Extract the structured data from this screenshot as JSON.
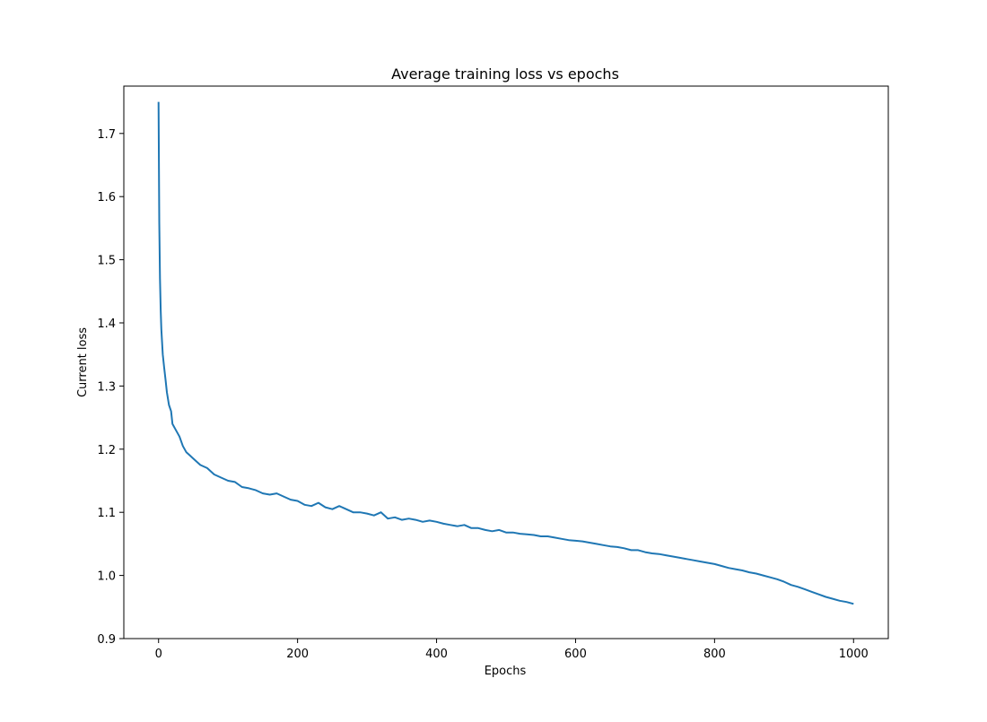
{
  "chart_data": {
    "type": "line",
    "title": "Average training loss vs epochs",
    "xlabel": "Epochs",
    "ylabel": "Current loss",
    "xlim": [
      -50,
      1050
    ],
    "ylim": [
      0.9,
      1.775
    ],
    "xticks": [
      0,
      200,
      400,
      600,
      800,
      1000
    ],
    "yticks": [
      0.9,
      1.0,
      1.1,
      1.2,
      1.3,
      1.4,
      1.5,
      1.6,
      1.7
    ],
    "grid": false,
    "legend": "none",
    "line_color": "#1f77b4",
    "series": [
      {
        "x": [
          0,
          1,
          2,
          3,
          4,
          5,
          6,
          8,
          10,
          12,
          15,
          18,
          20,
          25,
          30,
          35,
          40,
          45,
          50,
          60,
          70,
          80,
          90,
          100,
          110,
          120,
          130,
          140,
          150,
          160,
          170,
          180,
          190,
          200,
          210,
          220,
          230,
          240,
          250,
          260,
          270,
          280,
          290,
          300,
          310,
          320,
          330,
          340,
          350,
          360,
          370,
          380,
          390,
          400,
          410,
          420,
          430,
          440,
          450,
          460,
          470,
          480,
          490,
          500,
          510,
          520,
          530,
          540,
          550,
          560,
          570,
          580,
          590,
          600,
          610,
          620,
          630,
          640,
          650,
          660,
          670,
          680,
          690,
          700,
          710,
          720,
          730,
          740,
          750,
          760,
          770,
          780,
          790,
          800,
          810,
          820,
          830,
          840,
          850,
          860,
          870,
          880,
          890,
          900,
          910,
          920,
          930,
          940,
          950,
          960,
          970,
          980,
          990,
          1000
        ],
        "y": [
          1.75,
          1.56,
          1.47,
          1.42,
          1.39,
          1.37,
          1.35,
          1.33,
          1.31,
          1.29,
          1.27,
          1.26,
          1.24,
          1.23,
          1.22,
          1.205,
          1.195,
          1.19,
          1.185,
          1.175,
          1.17,
          1.16,
          1.155,
          1.15,
          1.148,
          1.14,
          1.138,
          1.135,
          1.13,
          1.128,
          1.13,
          1.125,
          1.12,
          1.118,
          1.112,
          1.11,
          1.115,
          1.108,
          1.105,
          1.11,
          1.105,
          1.1,
          1.1,
          1.098,
          1.095,
          1.1,
          1.09,
          1.092,
          1.088,
          1.09,
          1.088,
          1.085,
          1.087,
          1.085,
          1.082,
          1.08,
          1.078,
          1.08,
          1.075,
          1.075,
          1.072,
          1.07,
          1.072,
          1.068,
          1.068,
          1.066,
          1.065,
          1.064,
          1.062,
          1.062,
          1.06,
          1.058,
          1.056,
          1.055,
          1.054,
          1.052,
          1.05,
          1.048,
          1.046,
          1.045,
          1.043,
          1.04,
          1.04,
          1.037,
          1.035,
          1.034,
          1.032,
          1.03,
          1.028,
          1.026,
          1.024,
          1.022,
          1.02,
          1.018,
          1.015,
          1.012,
          1.01,
          1.008,
          1.005,
          1.003,
          1.0,
          0.997,
          0.994,
          0.99,
          0.985,
          0.982,
          0.978,
          0.974,
          0.97,
          0.966,
          0.963,
          0.96,
          0.958,
          0.955
        ]
      }
    ]
  }
}
